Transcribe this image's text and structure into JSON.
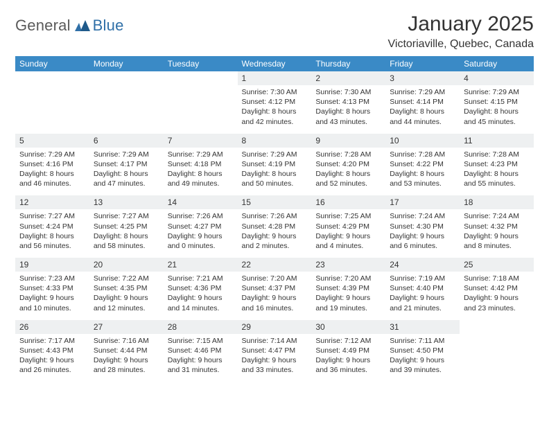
{
  "logo": {
    "textA": "General",
    "textB": "Blue"
  },
  "title": "January 2025",
  "location": "Victoriaville, Quebec, Canada",
  "dayHeaders": [
    "Sunday",
    "Monday",
    "Tuesday",
    "Wednesday",
    "Thursday",
    "Friday",
    "Saturday"
  ],
  "colors": {
    "headerBg": "#3a8ac6",
    "headerText": "#ffffff",
    "numBg": "#eef0f1",
    "borderRow": "#2f6fa7",
    "logoGray": "#5a5a5a",
    "logoBlue": "#2f6fa7",
    "bodyText": "#333333"
  },
  "weeks": [
    [
      null,
      null,
      null,
      {
        "n": "1",
        "sunrise": "7:30 AM",
        "sunset": "4:12 PM",
        "daylightH": 8,
        "daylightM": 42
      },
      {
        "n": "2",
        "sunrise": "7:30 AM",
        "sunset": "4:13 PM",
        "daylightH": 8,
        "daylightM": 43
      },
      {
        "n": "3",
        "sunrise": "7:29 AM",
        "sunset": "4:14 PM",
        "daylightH": 8,
        "daylightM": 44
      },
      {
        "n": "4",
        "sunrise": "7:29 AM",
        "sunset": "4:15 PM",
        "daylightH": 8,
        "daylightM": 45
      }
    ],
    [
      {
        "n": "5",
        "sunrise": "7:29 AM",
        "sunset": "4:16 PM",
        "daylightH": 8,
        "daylightM": 46
      },
      {
        "n": "6",
        "sunrise": "7:29 AM",
        "sunset": "4:17 PM",
        "daylightH": 8,
        "daylightM": 47
      },
      {
        "n": "7",
        "sunrise": "7:29 AM",
        "sunset": "4:18 PM",
        "daylightH": 8,
        "daylightM": 49
      },
      {
        "n": "8",
        "sunrise": "7:29 AM",
        "sunset": "4:19 PM",
        "daylightH": 8,
        "daylightM": 50
      },
      {
        "n": "9",
        "sunrise": "7:28 AM",
        "sunset": "4:20 PM",
        "daylightH": 8,
        "daylightM": 52
      },
      {
        "n": "10",
        "sunrise": "7:28 AM",
        "sunset": "4:22 PM",
        "daylightH": 8,
        "daylightM": 53
      },
      {
        "n": "11",
        "sunrise": "7:28 AM",
        "sunset": "4:23 PM",
        "daylightH": 8,
        "daylightM": 55
      }
    ],
    [
      {
        "n": "12",
        "sunrise": "7:27 AM",
        "sunset": "4:24 PM",
        "daylightH": 8,
        "daylightM": 56
      },
      {
        "n": "13",
        "sunrise": "7:27 AM",
        "sunset": "4:25 PM",
        "daylightH": 8,
        "daylightM": 58
      },
      {
        "n": "14",
        "sunrise": "7:26 AM",
        "sunset": "4:27 PM",
        "daylightH": 9,
        "daylightM": 0
      },
      {
        "n": "15",
        "sunrise": "7:26 AM",
        "sunset": "4:28 PM",
        "daylightH": 9,
        "daylightM": 2
      },
      {
        "n": "16",
        "sunrise": "7:25 AM",
        "sunset": "4:29 PM",
        "daylightH": 9,
        "daylightM": 4
      },
      {
        "n": "17",
        "sunrise": "7:24 AM",
        "sunset": "4:30 PM",
        "daylightH": 9,
        "daylightM": 6
      },
      {
        "n": "18",
        "sunrise": "7:24 AM",
        "sunset": "4:32 PM",
        "daylightH": 9,
        "daylightM": 8
      }
    ],
    [
      {
        "n": "19",
        "sunrise": "7:23 AM",
        "sunset": "4:33 PM",
        "daylightH": 9,
        "daylightM": 10
      },
      {
        "n": "20",
        "sunrise": "7:22 AM",
        "sunset": "4:35 PM",
        "daylightH": 9,
        "daylightM": 12
      },
      {
        "n": "21",
        "sunrise": "7:21 AM",
        "sunset": "4:36 PM",
        "daylightH": 9,
        "daylightM": 14
      },
      {
        "n": "22",
        "sunrise": "7:20 AM",
        "sunset": "4:37 PM",
        "daylightH": 9,
        "daylightM": 16
      },
      {
        "n": "23",
        "sunrise": "7:20 AM",
        "sunset": "4:39 PM",
        "daylightH": 9,
        "daylightM": 19
      },
      {
        "n": "24",
        "sunrise": "7:19 AM",
        "sunset": "4:40 PM",
        "daylightH": 9,
        "daylightM": 21
      },
      {
        "n": "25",
        "sunrise": "7:18 AM",
        "sunset": "4:42 PM",
        "daylightH": 9,
        "daylightM": 23
      }
    ],
    [
      {
        "n": "26",
        "sunrise": "7:17 AM",
        "sunset": "4:43 PM",
        "daylightH": 9,
        "daylightM": 26
      },
      {
        "n": "27",
        "sunrise": "7:16 AM",
        "sunset": "4:44 PM",
        "daylightH": 9,
        "daylightM": 28
      },
      {
        "n": "28",
        "sunrise": "7:15 AM",
        "sunset": "4:46 PM",
        "daylightH": 9,
        "daylightM": 31
      },
      {
        "n": "29",
        "sunrise": "7:14 AM",
        "sunset": "4:47 PM",
        "daylightH": 9,
        "daylightM": 33
      },
      {
        "n": "30",
        "sunrise": "7:12 AM",
        "sunset": "4:49 PM",
        "daylightH": 9,
        "daylightM": 36
      },
      {
        "n": "31",
        "sunrise": "7:11 AM",
        "sunset": "4:50 PM",
        "daylightH": 9,
        "daylightM": 39
      },
      null
    ]
  ],
  "labels": {
    "sunrise": "Sunrise:",
    "sunset": "Sunset:",
    "daylight": "Daylight:",
    "hours": "hours",
    "and": "and",
    "minutes": "minutes."
  }
}
